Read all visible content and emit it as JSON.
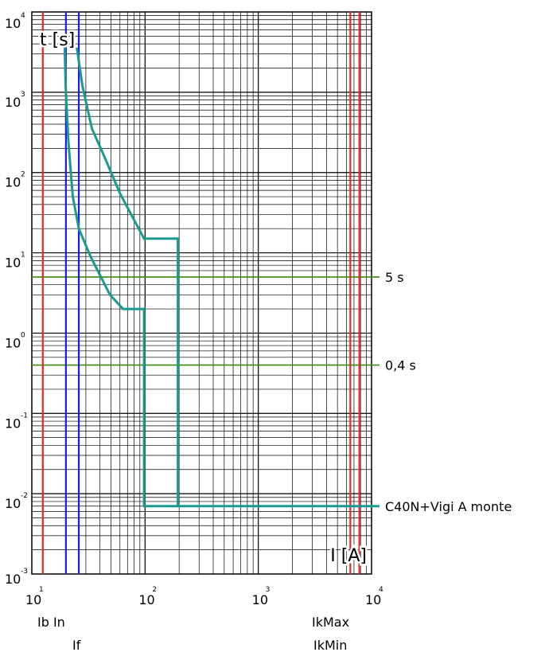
{
  "chart_data": {
    "type": "line",
    "scale": {
      "x": "log",
      "y": "log"
    },
    "xlim": [
      10,
      10000
    ],
    "ylim": [
      0.001,
      10000
    ],
    "grid": true,
    "xlabel": "I [A]",
    "ylabel": "t [s]",
    "x_ticks": [
      {
        "base": "10",
        "exp": "1"
      },
      {
        "base": "10",
        "exp": "2"
      },
      {
        "base": "10",
        "exp": "3"
      },
      {
        "base": "10",
        "exp": "4"
      }
    ],
    "y_ticks": [
      {
        "base": "10",
        "exp": "-3"
      },
      {
        "base": "10",
        "exp": "-2"
      },
      {
        "base": "10",
        "exp": "-1"
      },
      {
        "base": "10",
        "exp": "0"
      },
      {
        "base": "10",
        "exp": "1"
      },
      {
        "base": "10",
        "exp": "2"
      },
      {
        "base": "10",
        "exp": "3"
      },
      {
        "base": "10",
        "exp": "4"
      }
    ],
    "series": [
      {
        "name": "C40N+Vigi A monte",
        "color": "#1a9a8e",
        "lower": [
          [
            19.5,
            3600
          ],
          [
            20,
            1000
          ],
          [
            21,
            250
          ],
          [
            22,
            110
          ],
          [
            23,
            50
          ],
          [
            26,
            20
          ],
          [
            33,
            9
          ],
          [
            49,
            3
          ],
          [
            64,
            2
          ],
          [
            98,
            2
          ],
          [
            98,
            0.007
          ],
          [
            10000,
            0.007
          ]
        ],
        "upper": [
          [
            25,
            3600
          ],
          [
            28,
            1200
          ],
          [
            34,
            350
          ],
          [
            42,
            180
          ],
          [
            60,
            55
          ],
          [
            98,
            15
          ],
          [
            195,
            15
          ],
          [
            195,
            0.007
          ]
        ]
      }
    ],
    "vlines": [
      {
        "x": 12.5,
        "color": "#e8262a",
        "label": "Ib"
      },
      {
        "x": 20,
        "color": "#1c1ce0",
        "label": "In"
      },
      {
        "x": 26,
        "color": "#1c1ce0",
        "label": "If"
      },
      {
        "x": 6500,
        "color": "#e8262a",
        "label": "IkMax"
      },
      {
        "x": 7800,
        "color": "#e8262a",
        "label": "IkMin"
      }
    ],
    "hlines": [
      {
        "y": 5,
        "color": "#3a8a0c",
        "label": "5 s"
      },
      {
        "y": 0.4,
        "color": "#3a8a0c",
        "label": "0,4 s"
      }
    ],
    "bottom_labels": {
      "row1_left": "Ib In",
      "row2_left": "If",
      "row1_right": "IkMax",
      "row2_right": "IkMin"
    }
  }
}
